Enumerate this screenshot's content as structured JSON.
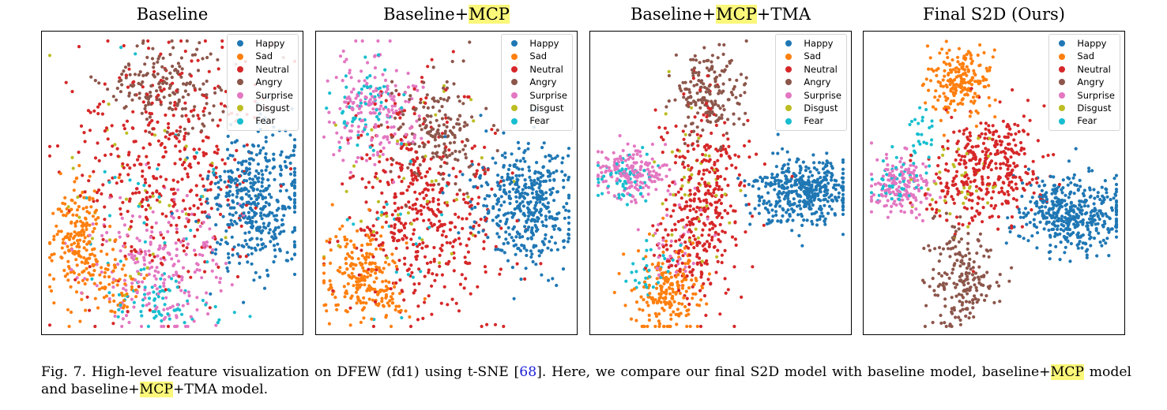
{
  "chart_data": [
    {
      "type": "scatter",
      "title": "Baseline",
      "title_parts": [
        {
          "text": "Baseline",
          "hl": false
        }
      ],
      "xlabel": "",
      "ylabel": "",
      "legend_position": "top-right",
      "series": [
        {
          "name": "Happy",
          "color": "#1f77b4"
        },
        {
          "name": "Sad",
          "color": "#ff7f0e"
        },
        {
          "name": "Neutral",
          "color": "#d62728"
        },
        {
          "name": "Angry",
          "color": "#8c564b"
        },
        {
          "name": "Surprise",
          "color": "#e377c2"
        },
        {
          "name": "Disgust",
          "color": "#bcbd22"
        },
        {
          "name": "Fear",
          "color": "#17becf"
        }
      ]
    },
    {
      "type": "scatter",
      "title": "Baseline+MCP",
      "title_parts": [
        {
          "text": "Baseline+",
          "hl": false
        },
        {
          "text": "MCP",
          "hl": true
        }
      ],
      "xlabel": "",
      "ylabel": "",
      "legend_position": "top-right",
      "series": [
        {
          "name": "Happy",
          "color": "#1f77b4"
        },
        {
          "name": "Sad",
          "color": "#ff7f0e"
        },
        {
          "name": "Neutral",
          "color": "#d62728"
        },
        {
          "name": "Angry",
          "color": "#8c564b"
        },
        {
          "name": "Surprise",
          "color": "#e377c2"
        },
        {
          "name": "Disgust",
          "color": "#bcbd22"
        },
        {
          "name": "Fear",
          "color": "#17becf"
        }
      ]
    },
    {
      "type": "scatter",
      "title": "Baseline+MCP+TMA",
      "title_parts": [
        {
          "text": "Baseline+",
          "hl": false
        },
        {
          "text": "MCP",
          "hl": true
        },
        {
          "text": "+TMA",
          "hl": false
        }
      ],
      "xlabel": "",
      "ylabel": "",
      "legend_position": "top-right",
      "series": [
        {
          "name": "Happy",
          "color": "#1f77b4"
        },
        {
          "name": "Sad",
          "color": "#ff7f0e"
        },
        {
          "name": "Neutral",
          "color": "#d62728"
        },
        {
          "name": "Angry",
          "color": "#8c564b"
        },
        {
          "name": "Surprise",
          "color": "#e377c2"
        },
        {
          "name": "Disgust",
          "color": "#bcbd22"
        },
        {
          "name": "Fear",
          "color": "#17becf"
        }
      ]
    },
    {
      "type": "scatter",
      "title": "Final S2D (Ours)",
      "title_parts": [
        {
          "text": "Final S2D (Ours)",
          "hl": false
        }
      ],
      "xlabel": "",
      "ylabel": "",
      "legend_position": "top-right",
      "series": [
        {
          "name": "Happy",
          "color": "#1f77b4"
        },
        {
          "name": "Sad",
          "color": "#ff7f0e"
        },
        {
          "name": "Neutral",
          "color": "#d62728"
        },
        {
          "name": "Angry",
          "color": "#8c564b"
        },
        {
          "name": "Surprise",
          "color": "#e377c2"
        },
        {
          "name": "Disgust",
          "color": "#bcbd22"
        },
        {
          "name": "Fear",
          "color": "#17becf"
        }
      ]
    }
  ],
  "caption": {
    "parts": [
      {
        "text": "Fig. 7.  High-level feature visualization on DFEW (fd1) using t-SNE [",
        "type": "text"
      },
      {
        "text": "68",
        "type": "cite"
      },
      {
        "text": "]. Here, we compare our final S2D model with baseline model, baseline+",
        "type": "text"
      },
      {
        "text": "MCP",
        "type": "hl"
      },
      {
        "text": " model and baseline+",
        "type": "text"
      },
      {
        "text": "MCP",
        "type": "hl"
      },
      {
        "text": "+TMA model.",
        "type": "text"
      }
    ]
  }
}
